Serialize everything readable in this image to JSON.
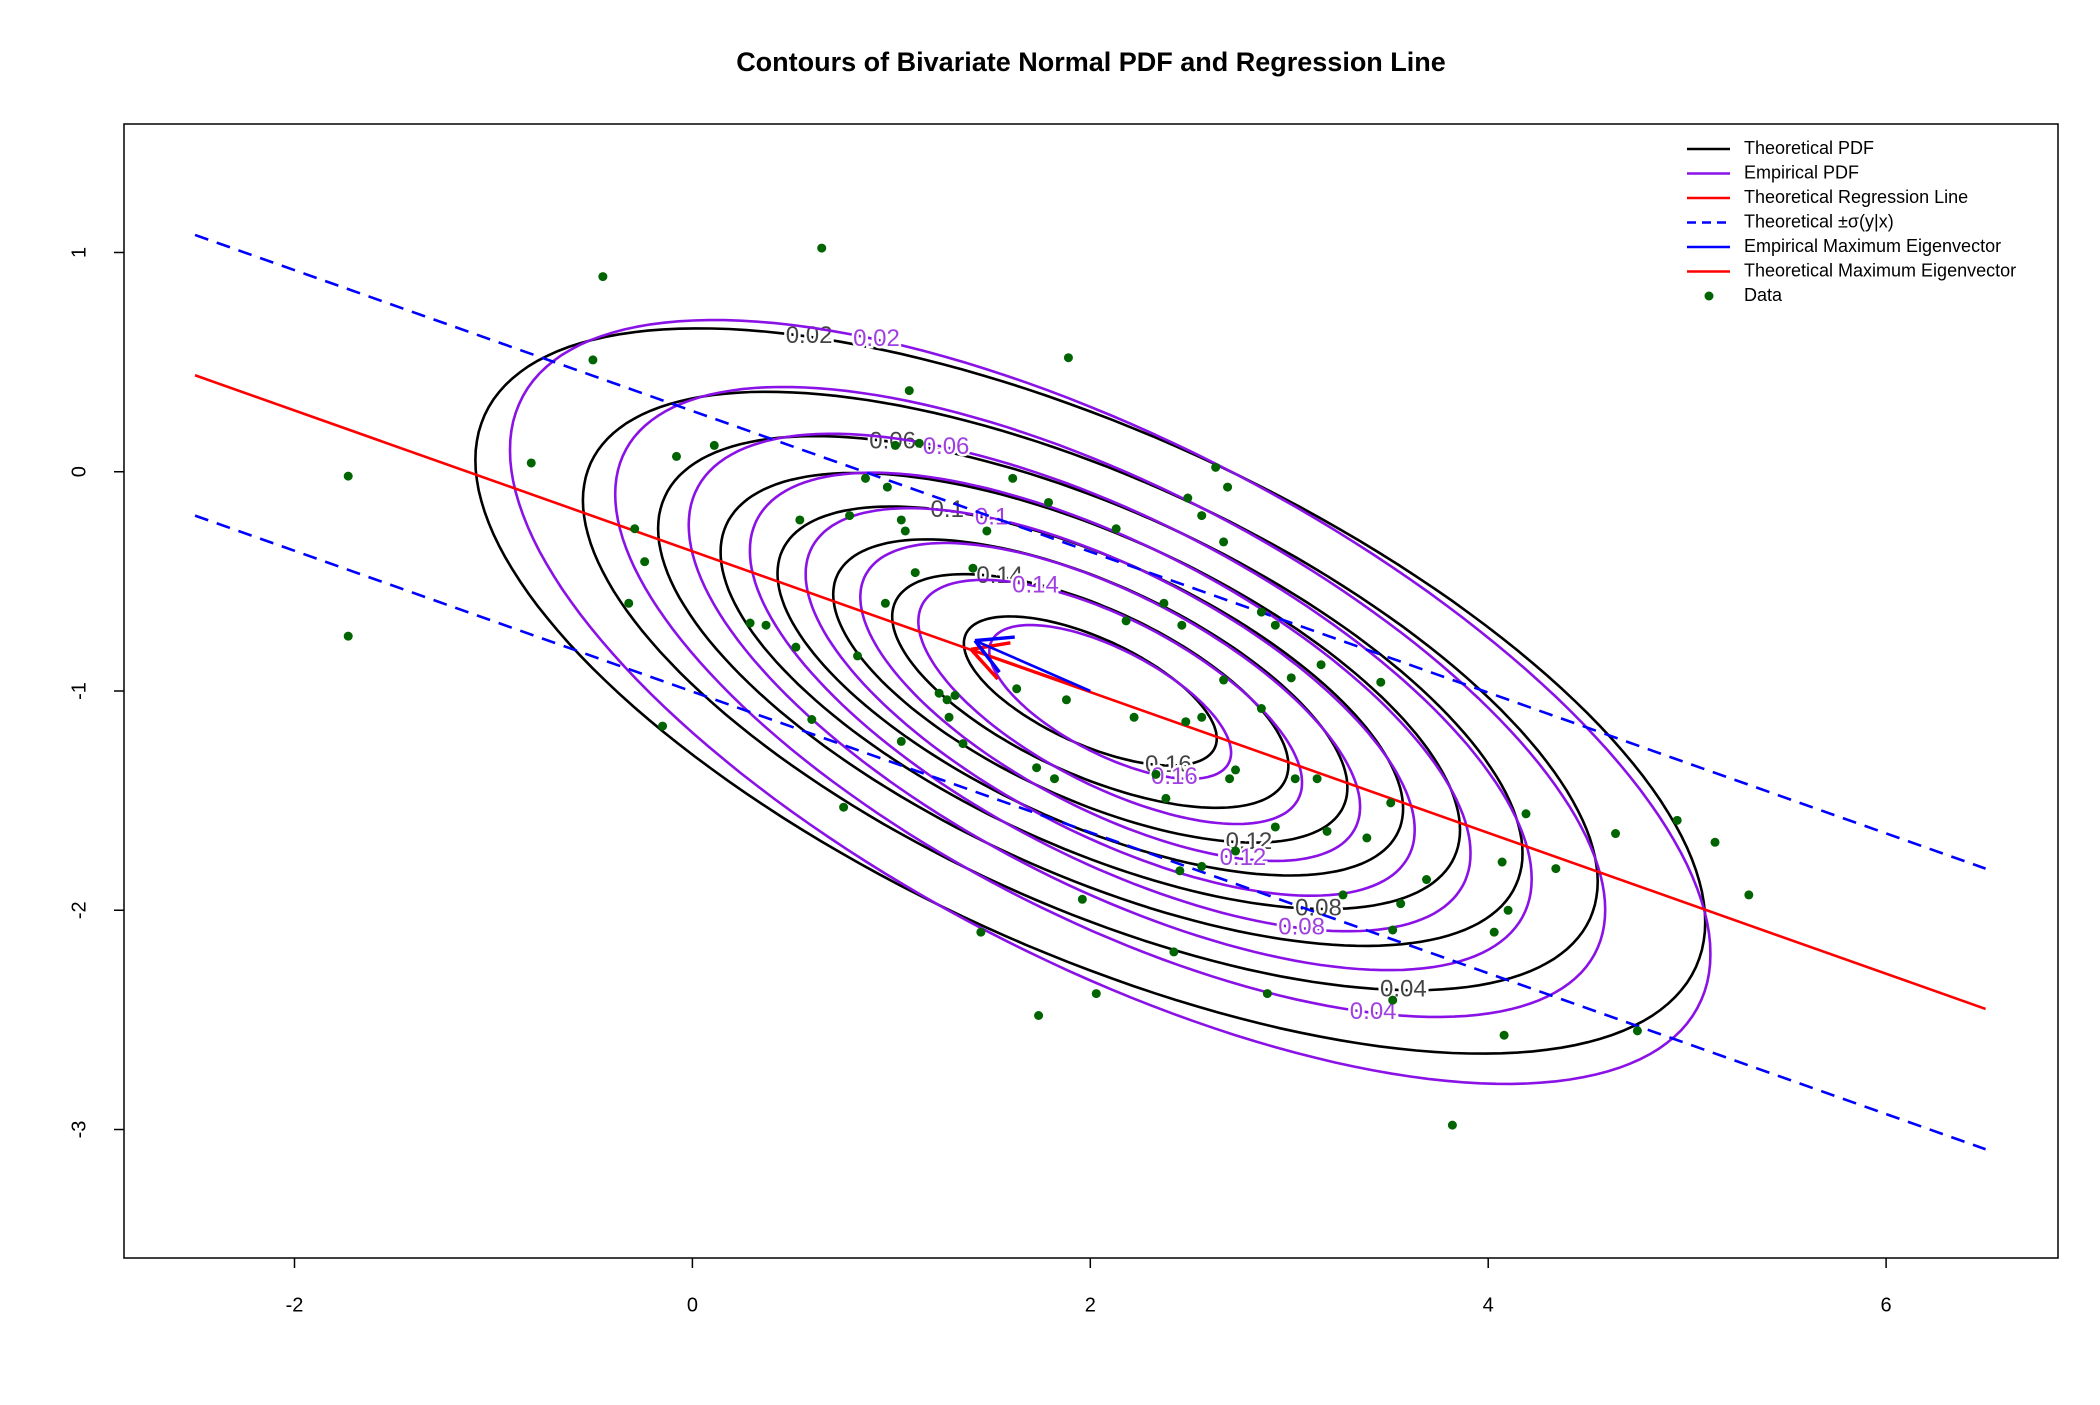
{
  "chart_data": {
    "type": "contour",
    "title": "Contours of Bivariate Normal PDF and Regression Line",
    "xlim": [
      -2.857,
      6.864
    ],
    "ylim": [
      -3.586,
      1.586
    ],
    "xticks": [
      -2,
      0,
      2,
      4,
      6
    ],
    "yticks": [
      -3,
      -2,
      -1,
      0,
      1
    ],
    "levels": [
      0.02,
      0.04,
      0.06,
      0.08,
      0.1,
      0.12,
      0.14,
      0.16
    ],
    "theoretical_pdf": {
      "name": "Theoretical PDF",
      "color": "#000000",
      "mean": [
        2,
        -1
      ],
      "cov": [
        [
          2.2,
          -0.75
        ],
        [
          -0.75,
          0.63
        ]
      ]
    },
    "empirical_pdf": {
      "name": "Empirical PDF",
      "color": "#8a12e6",
      "mean": [
        2.1,
        -1.05
      ],
      "cov": [
        [
          2.1,
          -0.8
        ],
        [
          -0.8,
          0.7
        ]
      ]
    },
    "regression_line": {
      "name": "Theoretical Regression Line",
      "color": "#ff0000",
      "x": [
        -2.5,
        6.5
      ],
      "y": [
        0.44,
        -2.45
      ]
    },
    "sigma_lines": {
      "name": "Theoretical ±σ(y|x)",
      "color": "#0000ff",
      "dashed": true,
      "upper": {
        "x": [
          -2.5,
          6.5
        ],
        "y": [
          1.08,
          -1.81
        ]
      },
      "lower": {
        "x": [
          -2.5,
          6.5
        ],
        "y": [
          -0.2,
          -3.09
        ]
      }
    },
    "empirical_eigenvector": {
      "name": "Empirical Maximum Eigenvector",
      "color": "#0000ff",
      "x": [
        2,
        1.42
      ],
      "y": [
        -1,
        -0.77
      ]
    },
    "theoretical_eigenvector": {
      "name": "Theoretical Maximum Eigenvector",
      "color": "#ff0000",
      "x": [
        2,
        1.4
      ],
      "y": [
        -1,
        -0.81
      ]
    },
    "data": {
      "name": "Data",
      "color": "#006400",
      "x": [
        -1.73,
        -1.73,
        -0.45,
        0.65,
        -0.5,
        -0.81,
        1.89,
        1.09,
        -0.08,
        0.11,
        -0.29,
        -0.24,
        -0.32,
        -0.15,
        0.29,
        0.37,
        0.54,
        0.52,
        0.79,
        0.87,
        1.02,
        1.14,
        0.98,
        1.05,
        1.07,
        1.12,
        0.97,
        0.83,
        0.6,
        1.05,
        1.24,
        1.28,
        1.32,
        1.29,
        1.36,
        1.41,
        1.48,
        1.61,
        1.79,
        1.63,
        1.88,
        1.73,
        1.82,
        0.76,
        1.45,
        1.74,
        1.96,
        2.03,
        2.13,
        2.18,
        2.22,
        2.33,
        2.37,
        2.38,
        2.46,
        2.48,
        2.49,
        2.56,
        2.56,
        2.45,
        2.56,
        2.42,
        2.63,
        2.69,
        2.67,
        2.67,
        2.86,
        2.93,
        2.86,
        2.73,
        2.7,
        2.93,
        2.73,
        2.89,
        3.01,
        3.16,
        3.03,
        3.14,
        3.19,
        3.27,
        3.39,
        3.46,
        3.51,
        3.52,
        3.56,
        3.52,
        3.69,
        3.82,
        4.03,
        4.07,
        4.1,
        4.08,
        4.19,
        4.34,
        4.64,
        4.75,
        4.95,
        5.14,
        5.31
      ],
      "y": [
        -0.02,
        -0.75,
        0.89,
        1.02,
        0.51,
        0.04,
        0.52,
        0.37,
        0.07,
        0.12,
        -0.26,
        -0.41,
        -0.6,
        -1.16,
        -0.69,
        -0.7,
        -0.22,
        -0.8,
        -0.2,
        -0.03,
        0.12,
        0.13,
        -0.07,
        -0.22,
        -0.27,
        -0.46,
        -0.6,
        -0.84,
        -1.13,
        -1.23,
        -1.01,
        -1.04,
        -1.02,
        -1.12,
        -1.24,
        -0.44,
        -0.27,
        -0.03,
        -0.14,
        -0.99,
        -1.04,
        -1.35,
        -1.4,
        -1.53,
        -2.1,
        -2.48,
        -1.95,
        -2.38,
        -0.26,
        -0.68,
        -1.12,
        -1.38,
        -0.6,
        -1.49,
        -0.7,
        -1.14,
        -0.12,
        -0.2,
        -1.12,
        -1.82,
        -1.8,
        -2.19,
        0.02,
        -0.07,
        -0.32,
        -0.95,
        -0.64,
        -0.7,
        -1.08,
        -1.36,
        -1.4,
        -1.62,
        -1.73,
        -2.38,
        -0.94,
        -0.88,
        -1.4,
        -1.4,
        -1.64,
        -1.93,
        -1.67,
        -0.96,
        -1.51,
        -2.09,
        -1.97,
        -2.41,
        -1.86,
        -2.98,
        -2.1,
        -1.78,
        -2.0,
        -2.57,
        -1.56,
        -1.81,
        -1.65,
        -2.55,
        -1.59,
        -1.69,
        -1.93
      ]
    }
  }
}
